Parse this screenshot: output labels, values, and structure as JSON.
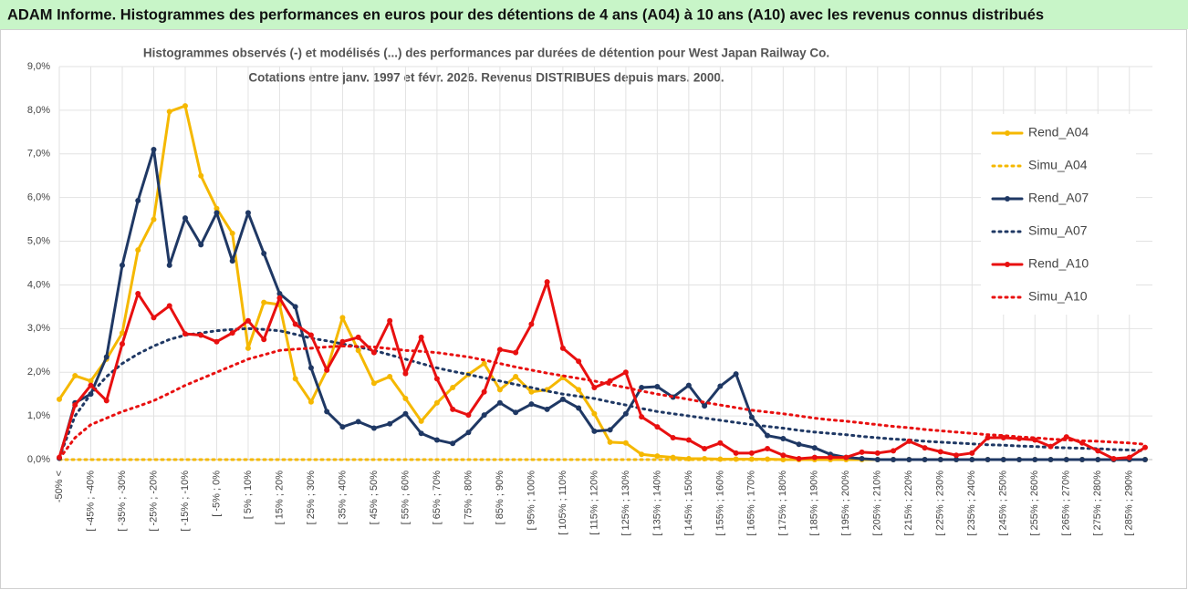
{
  "chart_data": {
    "type": "line",
    "title": "ADAM Informe. Histogrammes des performances en euros pour des détentions de 4 ans (A04) à 10 ans (A10) avec les revenus connus distribués",
    "subtitle": [
      "Histogrammes observés (-) et modélisés (...) des performances par durées de détention pour West Japan Railway Co.",
      "Cotations entre janv. 1997 et févr. 2026. Revenus DISTRIBUES depuis mars. 2000."
    ],
    "categories": [
      "-50% <",
      null,
      "[ -45% ; -40%",
      null,
      "[ -35% ; -30%",
      null,
      "[ -25% ; -20%",
      null,
      "[ -15% ; -10%",
      null,
      "[ -5% ; 0%",
      null,
      "[ 5% ; 10%",
      null,
      "[ 15% ; 20%",
      null,
      "[ 25% ; 30%",
      null,
      "[ 35% ; 40%",
      null,
      "[ 45% ; 50%",
      null,
      "[ 55% ; 60%",
      null,
      "[ 65% ; 70%",
      null,
      "[ 75% ; 80%",
      null,
      "[ 85% ; 90%",
      null,
      "[ 95% ; 100%",
      null,
      "[ 105% ; 110%",
      null,
      "[ 115% ; 120%",
      null,
      "[ 125% ; 130%",
      null,
      "[ 135% ; 140%",
      null,
      "[ 145% ; 150%",
      null,
      "[ 155% ; 160%",
      null,
      "[ 165% ; 170%",
      null,
      "[ 175% ; 180%",
      null,
      "[ 185% ; 190%",
      null,
      "[ 195% ; 200%",
      null,
      "[ 205% ; 210%",
      null,
      "[ 215% ; 220%",
      null,
      "[ 225% ; 230%",
      null,
      "[ 235% ; 240%",
      null,
      "[ 245% ; 250%",
      null,
      "[ 255% ; 260%",
      null,
      "[ 265% ; 270%",
      null,
      "[ 275% ; 280%",
      null,
      "[ 285% ; 290%",
      null
    ],
    "series": [
      {
        "name": "Rend_A04",
        "color": "#f5b800",
        "marker": true,
        "dotted": false,
        "values": [
          1.38,
          1.92,
          1.8,
          2.3,
          2.9,
          4.8,
          5.5,
          7.97,
          8.1,
          6.5,
          5.75,
          5.18,
          2.55,
          3.6,
          3.55,
          1.85,
          1.32,
          2.05,
          3.25,
          2.5,
          1.75,
          1.9,
          1.4,
          0.88,
          1.3,
          1.65,
          1.95,
          2.2,
          1.6,
          1.9,
          1.55,
          1.6,
          1.88,
          1.6,
          1.05,
          0.4,
          0.38,
          0.12,
          0.08,
          0.05,
          0.02,
          0.02,
          0.01,
          0.01,
          0.01,
          0.01,
          0,
          0,
          0,
          0,
          0,
          0,
          0,
          0,
          0,
          0,
          0,
          0,
          0,
          0,
          0,
          0,
          0,
          0,
          0,
          0,
          0,
          0,
          0,
          0
        ]
      },
      {
        "name": "Simu_A04",
        "color": "#f5b800",
        "marker": false,
        "dotted": true,
        "values": [
          0,
          0,
          0,
          0,
          0,
          0,
          0,
          0,
          0,
          0,
          0,
          0,
          0,
          0,
          0,
          0,
          0,
          0,
          0,
          0,
          0,
          0,
          0,
          0,
          0,
          0,
          0,
          0,
          0,
          0,
          0,
          0,
          0,
          0,
          0,
          0,
          0,
          0,
          0,
          0,
          0,
          0,
          0,
          0,
          0,
          0,
          0,
          0,
          0,
          0,
          0,
          0,
          0,
          0,
          0,
          0,
          0,
          0,
          0,
          0,
          0,
          0,
          0,
          0,
          0,
          0,
          0,
          0,
          0,
          0
        ]
      },
      {
        "name": "Rend_A07",
        "color": "#1f3864",
        "marker": true,
        "dotted": false,
        "values": [
          0.03,
          1.3,
          1.5,
          2.35,
          4.45,
          5.93,
          7.1,
          4.45,
          5.53,
          4.92,
          5.65,
          4.55,
          5.65,
          4.72,
          3.8,
          3.5,
          2.1,
          1.1,
          0.75,
          0.87,
          0.72,
          0.82,
          1.05,
          0.6,
          0.45,
          0.37,
          0.62,
          1.02,
          1.3,
          1.08,
          1.27,
          1.15,
          1.38,
          1.18,
          0.65,
          0.68,
          1.05,
          1.65,
          1.67,
          1.43,
          1.7,
          1.23,
          1.68,
          1.96,
          0.97,
          0.55,
          0.48,
          0.35,
          0.27,
          0.12,
          0.05,
          0.02,
          0,
          0,
          0,
          0,
          0,
          0,
          0,
          0,
          0,
          0,
          0,
          0,
          0,
          0,
          0,
          0,
          0,
          0
        ]
      },
      {
        "name": "Simu_A07",
        "color": "#1f3864",
        "marker": false,
        "dotted": true,
        "values": [
          0.05,
          1.0,
          1.5,
          1.9,
          2.2,
          2.42,
          2.6,
          2.75,
          2.85,
          2.9,
          2.95,
          2.98,
          3.0,
          2.98,
          2.95,
          2.87,
          2.78,
          2.72,
          2.65,
          2.58,
          2.5,
          2.4,
          2.3,
          2.2,
          2.1,
          2.02,
          1.95,
          1.87,
          1.8,
          1.72,
          1.65,
          1.57,
          1.5,
          1.45,
          1.4,
          1.32,
          1.25,
          1.17,
          1.1,
          1.05,
          1.0,
          0.95,
          0.9,
          0.85,
          0.8,
          0.76,
          0.72,
          0.67,
          0.63,
          0.6,
          0.57,
          0.53,
          0.5,
          0.47,
          0.45,
          0.42,
          0.4,
          0.38,
          0.36,
          0.34,
          0.33,
          0.31,
          0.3,
          0.28,
          0.27,
          0.26,
          0.25,
          0.23,
          0.22,
          0.2
        ]
      },
      {
        "name": "Rend_A10",
        "color": "#e81010",
        "marker": true,
        "dotted": false,
        "values": [
          0.05,
          1.25,
          1.7,
          1.35,
          2.65,
          3.8,
          3.25,
          3.52,
          2.88,
          2.85,
          2.7,
          2.9,
          3.18,
          2.75,
          3.7,
          3.1,
          2.85,
          2.05,
          2.7,
          2.8,
          2.45,
          3.18,
          1.97,
          2.8,
          1.85,
          1.15,
          1.02,
          1.55,
          2.52,
          2.45,
          3.1,
          4.07,
          2.55,
          2.25,
          1.65,
          1.8,
          2.0,
          0.98,
          0.75,
          0.5,
          0.45,
          0.25,
          0.38,
          0.15,
          0.15,
          0.25,
          0.1,
          0.02,
          0.05,
          0.05,
          0.05,
          0.17,
          0.15,
          0.2,
          0.42,
          0.27,
          0.18,
          0.1,
          0.15,
          0.5,
          0.5,
          0.48,
          0.45,
          0.3,
          0.52,
          0.38,
          0.2,
          0.02,
          0.05,
          0.28
        ]
      },
      {
        "name": "Simu_A10",
        "color": "#e81010",
        "marker": false,
        "dotted": true,
        "values": [
          0.02,
          0.5,
          0.8,
          0.95,
          1.1,
          1.22,
          1.35,
          1.52,
          1.7,
          1.85,
          2.0,
          2.15,
          2.3,
          2.4,
          2.5,
          2.53,
          2.55,
          2.58,
          2.6,
          2.59,
          2.58,
          2.54,
          2.5,
          2.48,
          2.45,
          2.4,
          2.35,
          2.28,
          2.2,
          2.12,
          2.05,
          1.98,
          1.92,
          1.86,
          1.8,
          1.72,
          1.65,
          1.57,
          1.5,
          1.44,
          1.38,
          1.31,
          1.25,
          1.19,
          1.13,
          1.09,
          1.05,
          1.0,
          0.95,
          0.91,
          0.88,
          0.84,
          0.8,
          0.76,
          0.73,
          0.69,
          0.66,
          0.63,
          0.6,
          0.57,
          0.55,
          0.52,
          0.5,
          0.47,
          0.45,
          0.43,
          0.42,
          0.4,
          0.38,
          0.35
        ]
      }
    ],
    "ylim": [
      0,
      9
    ],
    "yticks": [
      {
        "value": 0,
        "label": "0,0%"
      },
      {
        "value": 1,
        "label": "1,0%"
      },
      {
        "value": 2,
        "label": "2,0%"
      },
      {
        "value": 3,
        "label": "3,0%"
      },
      {
        "value": 4,
        "label": "4,0%"
      },
      {
        "value": 5,
        "label": "5,0%"
      },
      {
        "value": 6,
        "label": "6,0%"
      },
      {
        "value": 7,
        "label": "7,0%"
      },
      {
        "value": 8,
        "label": "8,0%"
      },
      {
        "value": 9,
        "label": "9,0%"
      }
    ],
    "grid": true,
    "legend": "right"
  }
}
